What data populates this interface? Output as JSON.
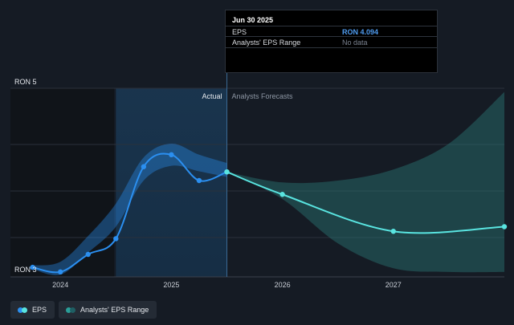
{
  "tooltip": {
    "date": "Jun 30 2025",
    "rows": [
      {
        "label": "EPS",
        "value": "RON 4.094"
      },
      {
        "label": "Analysts' EPS Range",
        "value": "No data"
      }
    ]
  },
  "legend": [
    {
      "label": "EPS",
      "color": "#2b8ff0",
      "color2": "#59e4e0"
    },
    {
      "label": "Analysts' EPS Range",
      "color": "#2a9e98",
      "color2": "#1f5f64"
    }
  ],
  "chart_data": {
    "type": "line",
    "ylim": [
      3,
      5
    ],
    "y_tick_labels": [
      {
        "value": 5,
        "label": "RON 5"
      },
      {
        "value": 3,
        "label": "RON 3"
      }
    ],
    "x_ticks": [
      {
        "year": 2024,
        "label": "2024"
      },
      {
        "year": 2025,
        "label": "2025"
      },
      {
        "year": 2026,
        "label": "2026"
      },
      {
        "year": 2027,
        "label": "2027"
      }
    ],
    "xlim": [
      2023.55,
      2028.0
    ],
    "actual_label": "Actual",
    "forecast_label": "Analysts Forecasts",
    "divider_x": 2025.5,
    "highlight_from_x": 2024.5,
    "colors": {
      "eps": "#2b8ff0",
      "forecast": "#59e4e0",
      "range_past": "#2b8ff0",
      "range_future": "#2a7f7c"
    },
    "series": [
      {
        "name": "EPS",
        "points": [
          {
            "x": 2023.75,
            "y": 3.06
          },
          {
            "x": 2024.0,
            "y": 3.01
          },
          {
            "x": 2024.25,
            "y": 3.2
          },
          {
            "x": 2024.5,
            "y": 3.37
          },
          {
            "x": 2024.75,
            "y": 4.15
          },
          {
            "x": 2025.0,
            "y": 4.28
          },
          {
            "x": 2025.25,
            "y": 4.0
          },
          {
            "x": 2025.5,
            "y": 4.094
          }
        ]
      },
      {
        "name": "EPS forecast",
        "points": [
          {
            "x": 2025.5,
            "y": 4.094
          },
          {
            "x": 2026.0,
            "y": 3.85
          },
          {
            "x": 2027.0,
            "y": 3.45
          },
          {
            "x": 2028.0,
            "y": 3.5
          }
        ]
      },
      {
        "name": "Analysts' EPS Range",
        "upper": [
          {
            "x": 2023.75,
            "y": 3.08
          },
          {
            "x": 2024.0,
            "y": 3.12
          },
          {
            "x": 2024.25,
            "y": 3.4
          },
          {
            "x": 2024.5,
            "y": 3.75
          },
          {
            "x": 2024.75,
            "y": 4.25
          },
          {
            "x": 2025.0,
            "y": 4.4
          },
          {
            "x": 2025.25,
            "y": 4.28
          },
          {
            "x": 2025.5,
            "y": 4.19
          }
        ],
        "lower": [
          {
            "x": 2023.75,
            "y": 3.04
          },
          {
            "x": 2024.0,
            "y": 2.98
          },
          {
            "x": 2024.25,
            "y": 3.22
          },
          {
            "x": 2024.5,
            "y": 3.5
          },
          {
            "x": 2024.75,
            "y": 4.0
          },
          {
            "x": 2025.0,
            "y": 4.16
          },
          {
            "x": 2025.25,
            "y": 4.1
          },
          {
            "x": 2025.5,
            "y": 4.04
          }
        ]
      },
      {
        "name": "Analysts' EPS Range forecast",
        "upper": [
          {
            "x": 2025.5,
            "y": 4.094
          },
          {
            "x": 2026.0,
            "y": 3.98
          },
          {
            "x": 2026.5,
            "y": 4.0
          },
          {
            "x": 2027.0,
            "y": 4.12
          },
          {
            "x": 2027.5,
            "y": 4.4
          },
          {
            "x": 2028.0,
            "y": 4.96
          }
        ],
        "lower": [
          {
            "x": 2025.5,
            "y": 4.094
          },
          {
            "x": 2026.0,
            "y": 3.8
          },
          {
            "x": 2026.5,
            "y": 3.32
          },
          {
            "x": 2027.0,
            "y": 3.05
          },
          {
            "x": 2027.5,
            "y": 3.01
          },
          {
            "x": 2028.0,
            "y": 3.01
          }
        ]
      }
    ]
  }
}
